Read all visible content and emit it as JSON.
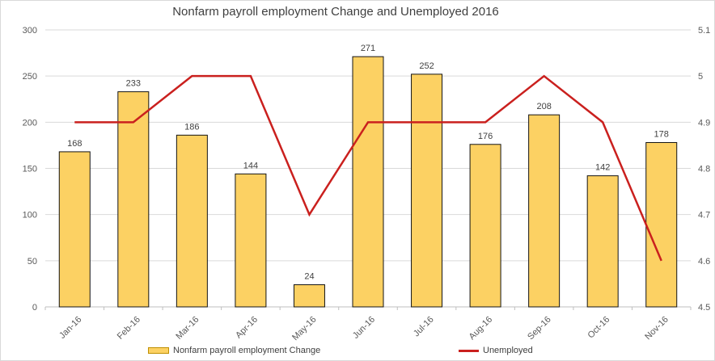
{
  "chart_data": {
    "type": "bar",
    "subtype": "combo-bar-line",
    "title": "Nonfarm payroll employment Change and Unemployed 2016",
    "xlabel": "",
    "ylabel_left": "",
    "ylabel_right": "",
    "grid": true,
    "data_labels": true,
    "legend_position": "bottom",
    "categories": [
      "Jan-16",
      "Feb-16",
      "Mar-16",
      "Apr-16",
      "May-16",
      "Jun-16",
      "Jul-16",
      "Aug-16",
      "Sep-16",
      "Oct-16",
      "Nov-16"
    ],
    "series": [
      {
        "name": "Nonfarm payroll employment Change",
        "type": "bar",
        "axis": "left",
        "values": [
          168,
          233,
          186,
          144,
          24,
          271,
          252,
          176,
          208,
          142,
          178
        ],
        "color": "#FCD163",
        "border_color": "#141414"
      },
      {
        "name": "Unemployed",
        "type": "line",
        "axis": "right",
        "values": [
          4.9,
          4.9,
          5.0,
          5.0,
          4.7,
          4.9,
          4.9,
          4.9,
          5.0,
          4.9,
          4.6
        ],
        "color": "#CA201E"
      }
    ],
    "left_axis": {
      "min": 0,
      "max": 300,
      "step": 50,
      "ticks": [
        "300",
        "250",
        "200",
        "150",
        "100",
        "50",
        "0"
      ]
    },
    "right_axis": {
      "min": 4.5,
      "max": 5.1,
      "step": 0.1,
      "ticks": [
        "5.1",
        "5",
        "4.9",
        "4.8",
        "4.7",
        "4.6",
        "4.5"
      ]
    }
  },
  "colors": {
    "grid": "#d9d9d9",
    "axis_line": "#bfbfbf",
    "axis_text": "#595959",
    "label_text": "#404040",
    "title_text": "#3f3f3f",
    "swatch_border": "#bf9000",
    "background": "#ffffff",
    "border": "#d9d9d9"
  }
}
